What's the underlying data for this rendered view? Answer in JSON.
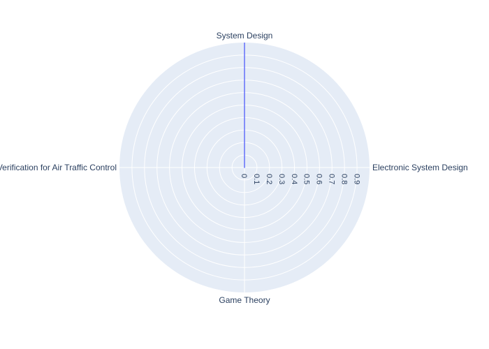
{
  "chart_data": {
    "type": "radar",
    "categories": [
      "System Design",
      "Electronic System Design",
      "Game Theory",
      "Verification for Air Traffic Control"
    ],
    "series": [
      {
        "values": [
          1,
          0,
          0,
          0
        ]
      }
    ],
    "radial_ticks": [
      "0",
      "0.1",
      "0.2",
      "0.3",
      "0.4",
      "0.5",
      "0.6",
      "0.7",
      "0.8",
      "0.9"
    ],
    "rlim": [
      0,
      1
    ],
    "colors": {
      "plot_background": "#e5ecf6",
      "grid": "#ffffff",
      "series_line": "#636efa",
      "text": "#2a3f5f"
    }
  }
}
